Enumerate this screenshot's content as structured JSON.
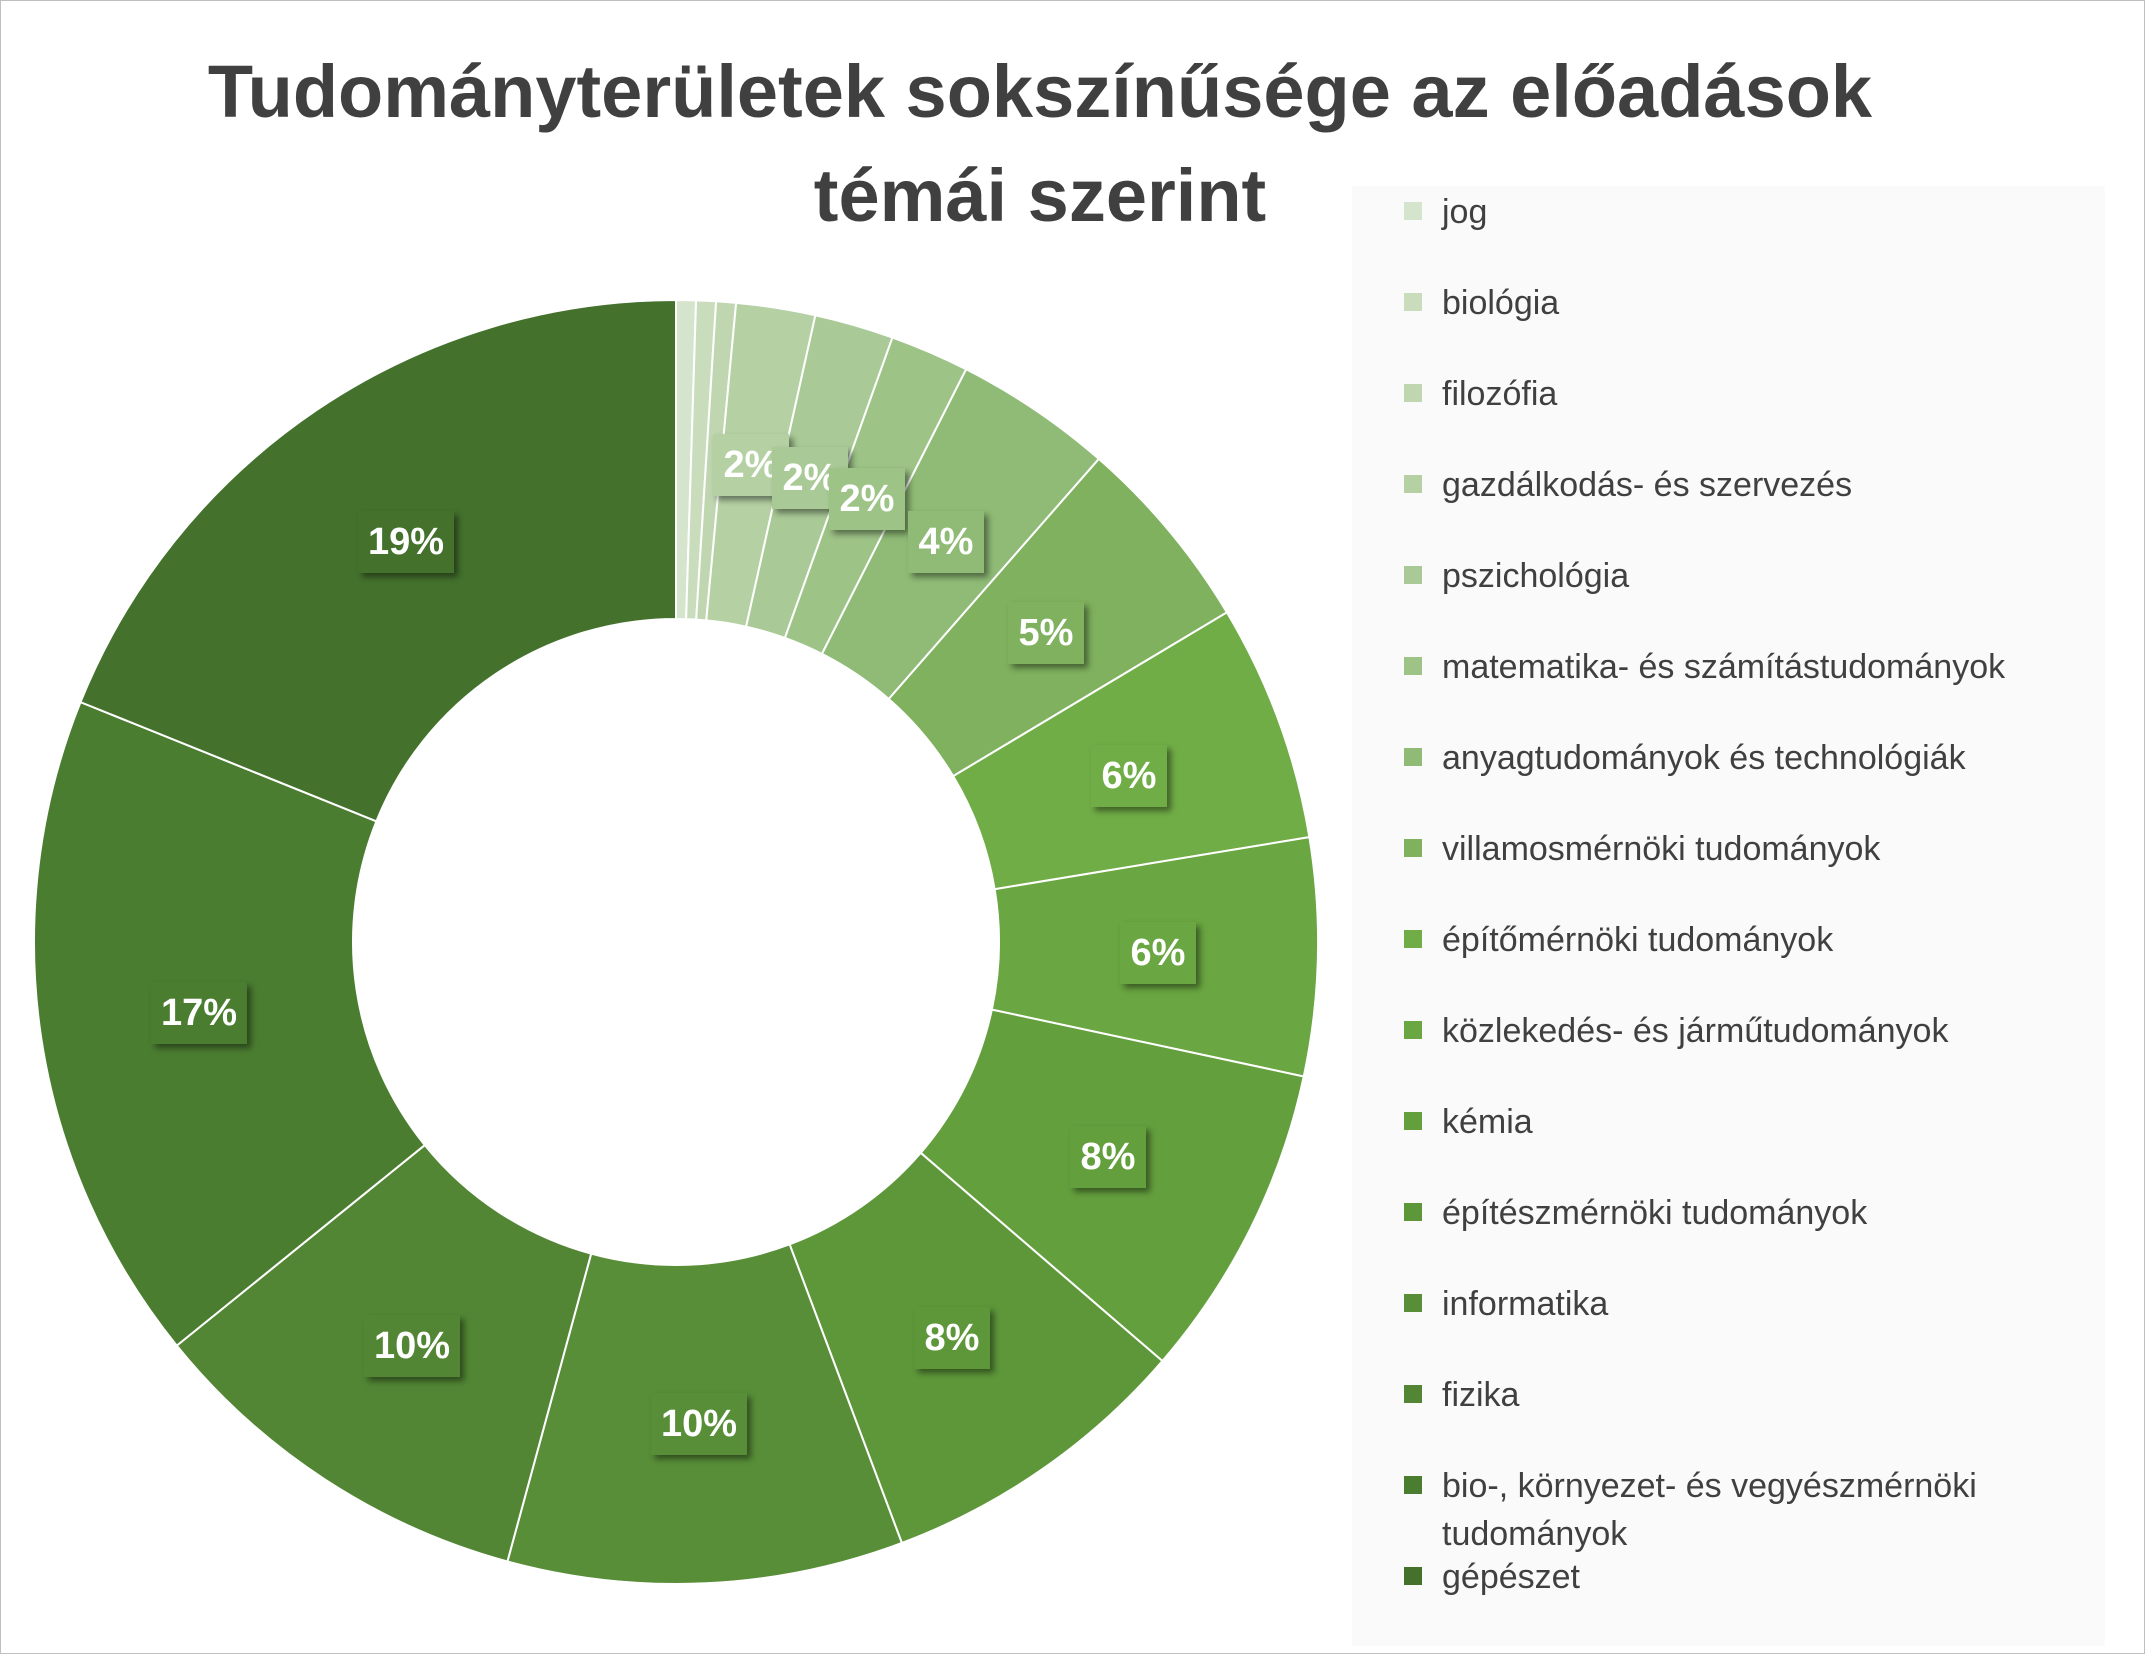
{
  "chart_data": {
    "type": "donut",
    "title": "Tudományterületek sokszínűsége az előadások témái szerint",
    "legend_position": "right",
    "slices": [
      {
        "name": "jog",
        "value": 0.5,
        "label": "",
        "color": "#d5e4cc"
      },
      {
        "name": "biológia",
        "value": 0.5,
        "label": "",
        "color": "#c9ddbd"
      },
      {
        "name": "filozófia",
        "value": 0.5,
        "label": "",
        "color": "#bfd6b0"
      },
      {
        "name": "gazdálkodás- és szervezés",
        "value": 2,
        "label": "2%",
        "color": "#b5d1a4"
      },
      {
        "name": "pszichológia",
        "value": 2,
        "label": "2%",
        "color": "#a9ca96"
      },
      {
        "name": "matematika- és számítástudományok",
        "value": 2,
        "label": "2%",
        "color": "#9dc387"
      },
      {
        "name": "anyagtudományok és technológiák",
        "value": 4,
        "label": "4%",
        "color": "#8fbb76"
      },
      {
        "name": "villamosmérnöki tudományok",
        "value": 5,
        "label": "5%",
        "color": "#7fb15e"
      },
      {
        "name": "építőmérnöki tudományok",
        "value": 6,
        "label": "6%",
        "color": "#70ad47"
      },
      {
        "name": "közlekedés- és járműtudományok",
        "value": 6,
        "label": "6%",
        "color": "#6aa641"
      },
      {
        "name": "kémia",
        "value": 8,
        "label": "8%",
        "color": "#649f3e"
      },
      {
        "name": "építészmérnöki tudományok",
        "value": 8,
        "label": "8%",
        "color": "#5e973a"
      },
      {
        "name": "informatika",
        "value": 10,
        "label": "10%",
        "color": "#588e38"
      },
      {
        "name": "fizika",
        "value": 10,
        "label": "10%",
        "color": "#528634"
      },
      {
        "name": "bio-, környezet- és vegyészmérnöki tudományok",
        "value": 17,
        "label": "17%",
        "color": "#4b7d31"
      },
      {
        "name": "gépészet",
        "value": 19,
        "label": "19%",
        "color": "#44722d"
      }
    ]
  }
}
